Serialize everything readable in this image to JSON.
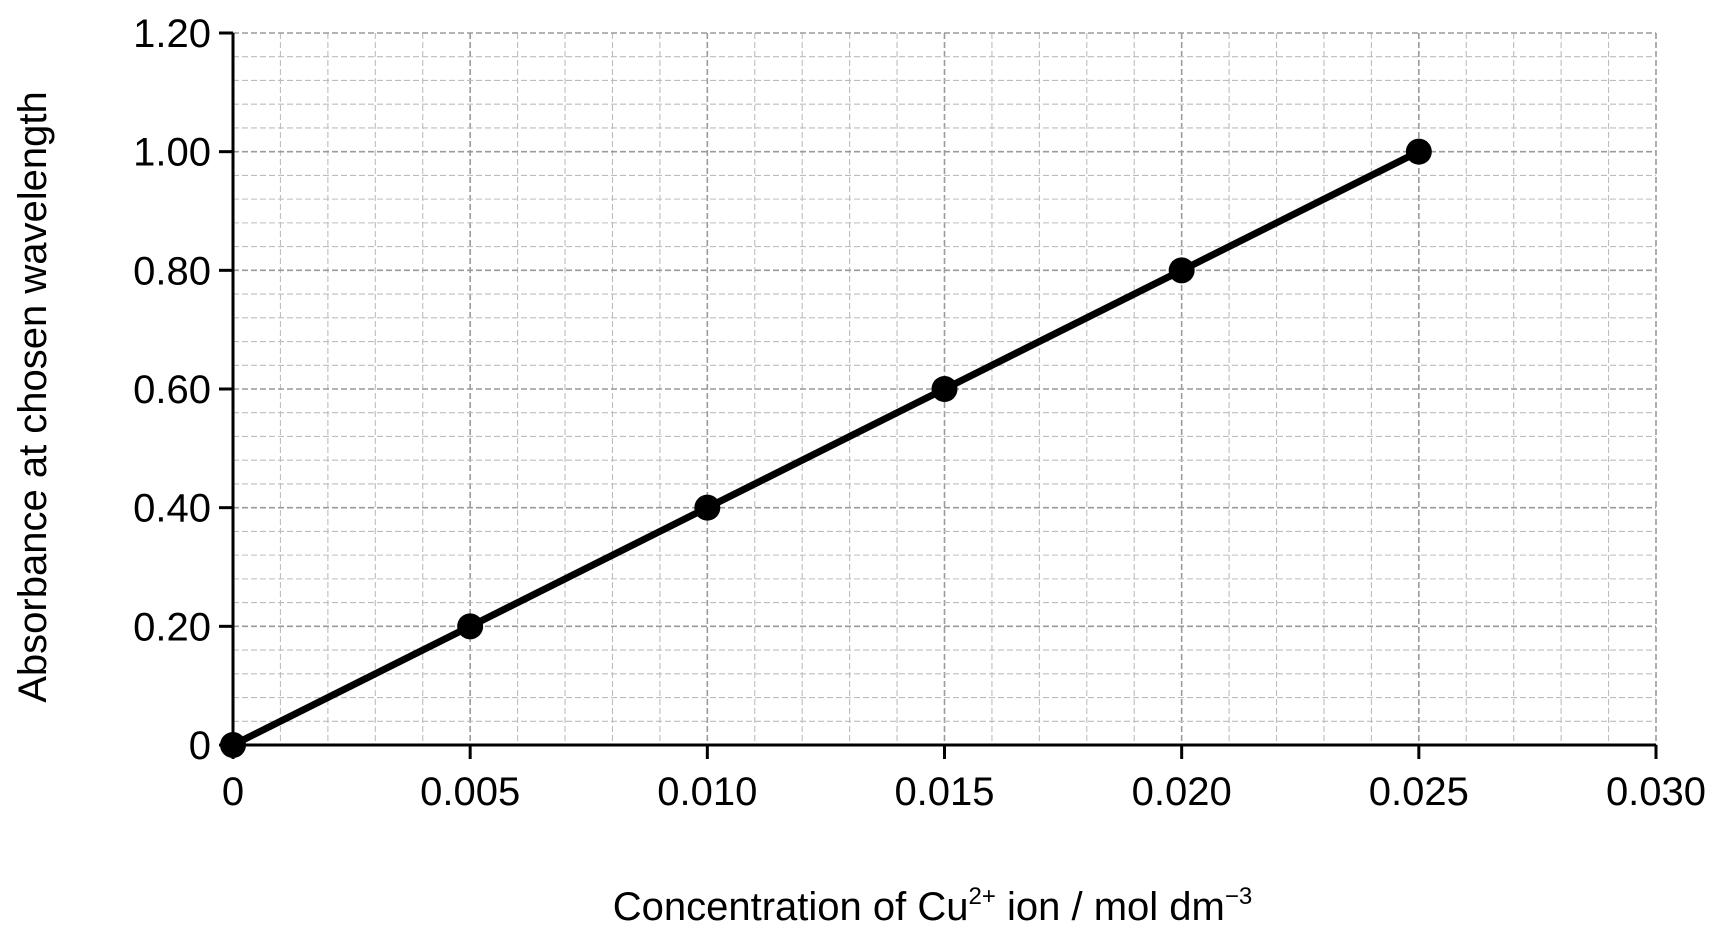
{
  "chart_data": {
    "type": "line",
    "xlabel": {
      "main": "Concentration of Cu",
      "sup1": "2+",
      "mid": " ion / mol dm",
      "sup2": "−3"
    },
    "ylabel": "Absorbance at chosen wavelength",
    "xlim": [
      0,
      0.03
    ],
    "ylim": [
      0,
      1.2
    ],
    "x_ticks": [
      0,
      0.005,
      0.01,
      0.015,
      0.02,
      0.025,
      0.03
    ],
    "x_tick_labels": [
      "0",
      "0.005",
      "0.010",
      "0.015",
      "0.020",
      "0.025",
      "0.030"
    ],
    "y_ticks": [
      0,
      0.2,
      0.4,
      0.6,
      0.8,
      1.0,
      1.2
    ],
    "y_tick_labels": [
      "0",
      "0.20",
      "0.40",
      "0.60",
      "0.80",
      "1.00",
      "1.20"
    ],
    "x_minor_step": 0.001,
    "y_minor_step": 0.04,
    "grid": true,
    "series": [
      {
        "x": [
          0,
          0.005,
          0.01,
          0.015,
          0.02,
          0.025
        ],
        "y": [
          0,
          0.2,
          0.4,
          0.6,
          0.8,
          1.0
        ]
      }
    ],
    "colors": {
      "line": "#000000",
      "grid_major": "#9a9a9a",
      "grid_minor": "#bdbdbd"
    }
  }
}
